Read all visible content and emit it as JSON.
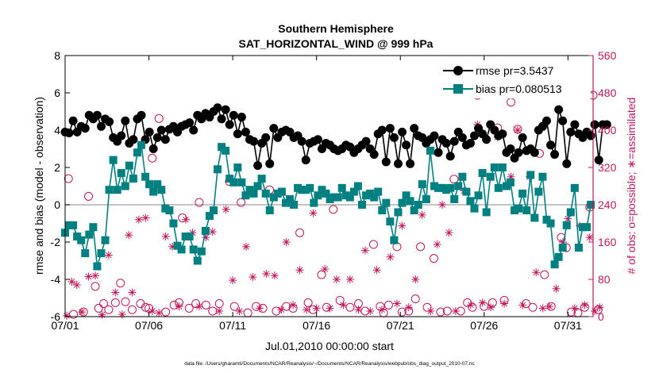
{
  "chart_data": {
    "type": "line",
    "title": "Southern Hemisphere",
    "subtitle": "SAT_HORIZONTAL_WIND @ 999 hPa",
    "xlabel": "Jul.01,2010 00:00:00 start",
    "ylabel": "rmse and bias (model - observation)",
    "ylabel_right": "# of obs: o=possible; ∗=assimilated",
    "xlim": [
      0,
      31.5
    ],
    "ylim": [
      -6,
      8
    ],
    "ylim_right": [
      0,
      560
    ],
    "xticks": [
      0,
      5,
      10,
      15,
      20,
      25,
      30
    ],
    "xticklabels": [
      "07/01",
      "07/06",
      "07/11",
      "07/16",
      "07/21",
      "07/26",
      "07/31"
    ],
    "yticks": [
      -6,
      -4,
      -2,
      0,
      2,
      4,
      6,
      8
    ],
    "yticks_right": [
      0,
      80,
      160,
      240,
      320,
      400,
      480,
      560
    ],
    "zero_line": 0,
    "grid": false,
    "legend_position": "top-right",
    "footnote": "data file: /Users/gharamti/Documents/NCAR/Reanalysis/~/Documents/NCAR/Reanalysis/webpub/obs_diag_output_2010-07.nc",
    "colors": {
      "rmse": "#000000",
      "bias": "#008080",
      "obs": "#c2185b",
      "zero": "#b0b0b0"
    },
    "series": [
      {
        "name": "rmse",
        "legend": "rmse pr=3.5437",
        "marker": "circle",
        "color": "#000000",
        "values": [
          3.9,
          3.85,
          4.5,
          3.9,
          4.2,
          4.1,
          4.8,
          4.6,
          4.8,
          4.2,
          4.6,
          4.45,
          3.6,
          3.4,
          3.7,
          4.5,
          3.3,
          3.5,
          4.6,
          4.8,
          3.5,
          3.9,
          3.0,
          3.6,
          4.0,
          3.5,
          4.05,
          4.2,
          3.9,
          4.2,
          4.3,
          4.4,
          4.0,
          4.8,
          4.6,
          4.9,
          4.7,
          5.0,
          5.2,
          4.6,
          5.1,
          4.3,
          4.8,
          3.8,
          4.7,
          3.9,
          3.5,
          3.4,
          2.1,
          3.3,
          3.6,
          2.2,
          4.1,
          3.6,
          3.9,
          4.0,
          3.9,
          3.6,
          3.7,
          3.4,
          2.4,
          3.3,
          3.4,
          3.5,
          3.0,
          3.3,
          3.2,
          3.0,
          2.9,
          3.0,
          3.2,
          3.1,
          2.8,
          3.0,
          3.2,
          3.4,
          3.0,
          2.7,
          3.8,
          4.0,
          2.3,
          4.1,
          3.6,
          2.2,
          3.9,
          3.2,
          2.2,
          4.1,
          3.7,
          3.6,
          3.3,
          3.5,
          3.7,
          2.8,
          3.5,
          3.3,
          2.6,
          3.4,
          3.9,
          3.6,
          3.2,
          3.3,
          3.7,
          4.1,
          3.8,
          3.5,
          4.3,
          4.0,
          3.7,
          3.8,
          2.8,
          3.0,
          2.5,
          2.8,
          3.6,
          2.9,
          3.0,
          2.8,
          4.0,
          4.2,
          4.5,
          3.2,
          2.7,
          5.1,
          4.5,
          2.2,
          3.9,
          4.3,
          3.8,
          3.6,
          3.9,
          3.7,
          4.3,
          2.4,
          4.3,
          4.3
        ],
        "x_start": 0.0,
        "x_step": 0.2394
      },
      {
        "name": "bias",
        "legend": "bias pr=0.080513",
        "marker": "square",
        "color": "#008080",
        "values": [
          -1.5,
          -1.1,
          -1.1,
          -1.7,
          -1.9,
          -2.6,
          -1.6,
          -1.2,
          -3.3,
          -2.6,
          -1.9,
          0.8,
          2.4,
          0.8,
          1.7,
          1.0,
          2.1,
          1.4,
          2.8,
          3.2,
          1.5,
          1.1,
          0.7,
          1.1,
          0.8,
          -0.2,
          -0.3,
          -1.0,
          -2.2,
          -2.4,
          -1.7,
          -1.7,
          -2.4,
          -3.0,
          -2.5,
          -1.4,
          -0.6,
          -0.3,
          1.9,
          3.1,
          2.9,
          1.4,
          1.2,
          2.0,
          1.2,
          0.5,
          0.8,
          0.6,
          1.0,
          1.4,
          0.6,
          -0.3,
          0.4,
          0.6,
          0.7,
          0.1,
          0.3,
          0.0,
          0.9,
          0.8,
          0.8,
          0.9,
          0.1,
          0.5,
          0.8,
          0.6,
          0.3,
          0.4,
          0.4,
          0.9,
          0.5,
          0.4,
          0.7,
          1.0,
          0.0,
          0.5,
          0.6,
          0.4,
          0.7,
          -0.3,
          0.1,
          -0.9,
          -1.9,
          -0.4,
          0.1,
          0.5,
          0.2,
          -0.3,
          0.0,
          1.1,
          0.3,
          2.9,
          1.0,
          0.9,
          0.9,
          0.8,
          0.9,
          0.3,
          1.0,
          1.5,
          0.7,
          0.2,
          -0.2,
          0.5,
          1.7,
          -0.4,
          1.5,
          2.0,
          0.9,
          2.0,
          1.0,
          1.2,
          -0.3,
          -0.2,
          0.6,
          -0.3,
          1.6,
          -0.7,
          0.7,
          1.5,
          -0.8,
          -1.0,
          -3.2,
          -2.8,
          -2.3,
          -1.1,
          -0.4,
          0.9,
          -2.3,
          -1.2,
          -1.2,
          0.0
        ],
        "x_start": 0.0,
        "x_step": 0.2394
      },
      {
        "name": "possible",
        "marker": "open-circle",
        "color": "#c2185b",
        "axis": "right",
        "points": [
          [
            0.2,
            296
          ],
          [
            0.5,
            5
          ],
          [
            1.1,
            10
          ],
          [
            1.4,
            258
          ],
          [
            1.8,
            65
          ],
          [
            2.0,
            18
          ],
          [
            2.3,
            28
          ],
          [
            2.6,
            15
          ],
          [
            3.0,
            30
          ],
          [
            3.3,
            72
          ],
          [
            3.6,
            32
          ],
          [
            4.0,
            15
          ],
          [
            4.5,
            28
          ],
          [
            4.8,
            20
          ],
          [
            5.0,
            18
          ],
          [
            5.2,
            340
          ],
          [
            5.6,
            425
          ],
          [
            6.0,
            10
          ],
          [
            6.5,
            25
          ],
          [
            6.8,
            30
          ],
          [
            7.0,
            212
          ],
          [
            7.4,
            18
          ],
          [
            7.8,
            28
          ],
          [
            8.0,
            245
          ],
          [
            8.4,
            25
          ],
          [
            8.8,
            12
          ],
          [
            9.2,
            28
          ],
          [
            9.8,
            290
          ],
          [
            10.1,
            22
          ],
          [
            10.5,
            245
          ],
          [
            10.9,
            8
          ],
          [
            11.4,
            22
          ],
          [
            11.8,
            18
          ],
          [
            12.2,
            272
          ],
          [
            12.6,
            12
          ],
          [
            13.2,
            22
          ],
          [
            13.6,
            18
          ],
          [
            14.0,
            180
          ],
          [
            14.5,
            30
          ],
          [
            14.8,
            15
          ],
          [
            15.3,
            90
          ],
          [
            15.6,
            20
          ],
          [
            16.0,
            230
          ],
          [
            16.4,
            35
          ],
          [
            17.0,
            20
          ],
          [
            17.5,
            28
          ],
          [
            17.9,
            12
          ],
          [
            18.4,
            155
          ],
          [
            18.8,
            22
          ],
          [
            19.0,
            8
          ],
          [
            19.3,
            25
          ],
          [
            19.8,
            150
          ],
          [
            20.1,
            10
          ],
          [
            20.5,
            12
          ],
          [
            20.9,
            38
          ],
          [
            21.2,
            150
          ],
          [
            21.6,
            20
          ],
          [
            22.0,
            125
          ],
          [
            22.4,
            10
          ],
          [
            22.8,
            12
          ],
          [
            23.2,
            295
          ],
          [
            23.6,
            12
          ],
          [
            24.0,
            30
          ],
          [
            24.3,
            20
          ],
          [
            24.6,
            475
          ],
          [
            25.0,
            22
          ],
          [
            25.5,
            30
          ],
          [
            25.8,
            405
          ],
          [
            26.2,
            35
          ],
          [
            26.6,
            460
          ],
          [
            27.0,
            402
          ],
          [
            27.5,
            28
          ],
          [
            27.9,
            20
          ],
          [
            28.3,
            350
          ],
          [
            28.6,
            90
          ],
          [
            29.0,
            22
          ],
          [
            29.6,
            170
          ],
          [
            29.9,
            148
          ],
          [
            30.2,
            10
          ],
          [
            30.6,
            8
          ],
          [
            31.0,
            20
          ],
          [
            31.3,
            235
          ],
          [
            31.5,
            475
          ],
          [
            31.8,
            15
          ]
        ]
      },
      {
        "name": "assimilated",
        "marker": "star",
        "color": "#c2185b",
        "axis": "right",
        "points": [
          [
            0.1,
            2
          ],
          [
            0.4,
            75
          ],
          [
            0.7,
            68
          ],
          [
            1.0,
            10
          ],
          [
            1.4,
            86
          ],
          [
            1.8,
            88
          ],
          [
            2.2,
            4
          ],
          [
            2.6,
            132
          ],
          [
            3.0,
            52
          ],
          [
            3.4,
            5
          ],
          [
            3.8,
            175
          ],
          [
            4.0,
            52
          ],
          [
            4.4,
            208
          ],
          [
            4.8,
            212
          ],
          [
            5.2,
            12
          ],
          [
            5.6,
            8
          ],
          [
            6.0,
            172
          ],
          [
            6.4,
            150
          ],
          [
            6.8,
            22
          ],
          [
            7.2,
            208
          ],
          [
            7.6,
            180
          ],
          [
            8.0,
            22
          ],
          [
            8.4,
            170
          ],
          [
            8.8,
            182
          ],
          [
            9.2,
            12
          ],
          [
            9.6,
            230
          ],
          [
            10.0,
            78
          ],
          [
            10.4,
            12
          ],
          [
            10.8,
            150
          ],
          [
            11.2,
            85
          ],
          [
            11.6,
            18
          ],
          [
            12.0,
            92
          ],
          [
            12.5,
            88
          ],
          [
            12.9,
            15
          ],
          [
            13.2,
            160
          ],
          [
            13.6,
            25
          ],
          [
            14.0,
            100
          ],
          [
            14.4,
            15
          ],
          [
            14.8,
            222
          ],
          [
            15.0,
            18
          ],
          [
            15.5,
            102
          ],
          [
            15.8,
            18
          ],
          [
            16.2,
            80
          ],
          [
            16.6,
            25
          ],
          [
            17.0,
            80
          ],
          [
            17.5,
            15
          ],
          [
            17.9,
            142
          ],
          [
            18.2,
            12
          ],
          [
            18.6,
            100
          ],
          [
            18.9,
            15
          ],
          [
            19.4,
            128
          ],
          [
            19.8,
            28
          ],
          [
            20.1,
            195
          ],
          [
            20.5,
            20
          ],
          [
            20.9,
            80
          ],
          [
            21.3,
            218
          ],
          [
            21.8,
            12
          ],
          [
            22.2,
            155
          ],
          [
            22.5,
            240
          ],
          [
            22.9,
            180
          ],
          [
            23.3,
            12
          ],
          [
            23.8,
            270
          ],
          [
            24.2,
            25
          ],
          [
            24.6,
            412
          ],
          [
            24.9,
            30
          ],
          [
            25.4,
            20
          ],
          [
            25.8,
            385
          ],
          [
            26.2,
            28
          ],
          [
            26.6,
            300
          ],
          [
            27.0,
            400
          ],
          [
            27.3,
            25
          ],
          [
            27.7,
            300
          ],
          [
            28.1,
            95
          ],
          [
            28.5,
            18
          ],
          [
            28.9,
            22
          ],
          [
            29.3,
            60
          ],
          [
            29.7,
            160
          ],
          [
            30.0,
            210
          ],
          [
            30.4,
            18
          ],
          [
            30.7,
            195
          ],
          [
            31.0,
            25
          ],
          [
            31.3,
            170
          ],
          [
            31.6,
            12
          ],
          [
            31.9,
            20
          ]
        ]
      }
    ]
  }
}
